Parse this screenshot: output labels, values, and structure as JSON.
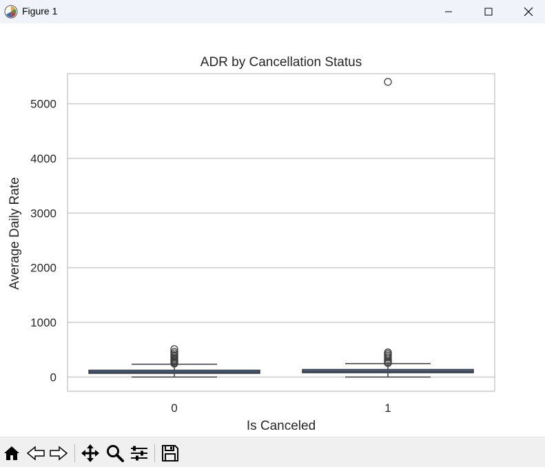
{
  "window": {
    "title": "Figure 1",
    "icons": [
      "matplotlib-logo-icon",
      "minimize-icon",
      "maximize-icon",
      "close-icon"
    ]
  },
  "toolbar": {
    "buttons": [
      "home-icon",
      "back-arrow-icon",
      "forward-arrow-icon",
      "pan-icon",
      "zoom-icon",
      "configure-subplots-icon",
      "save-icon"
    ]
  },
  "chart_data": {
    "type": "box",
    "title": "ADR by Cancellation Status",
    "xlabel": "Is Canceled",
    "ylabel": "Average Daily Rate",
    "categories": [
      "0",
      "1"
    ],
    "ylim": [
      -260,
      5550
    ],
    "yticks": [
      0,
      1000,
      2000,
      3000,
      4000,
      5000
    ],
    "ytick_labels": [
      "0",
      "1000",
      "2000",
      "3000",
      "4000",
      "5000"
    ],
    "grid": true,
    "colors": {
      "box": "#4c72b0",
      "lines": "#3b3b3b",
      "grid": "#cccccc",
      "spine": "#cccccc"
    },
    "boxes": [
      {
        "category": "0",
        "whislo": 0,
        "q1": 67,
        "median": 92,
        "q3": 125,
        "whishi": 235,
        "fliers": [
          245,
          265,
          285,
          305,
          325,
          350,
          375,
          400,
          430,
          460,
          510
        ]
      },
      {
        "category": "1",
        "whislo": 0,
        "q1": 78,
        "median": 105,
        "q3": 138,
        "whishi": 245,
        "fliers": [
          255,
          275,
          300,
          330,
          360,
          390,
          420,
          450,
          5400
        ]
      }
    ]
  }
}
